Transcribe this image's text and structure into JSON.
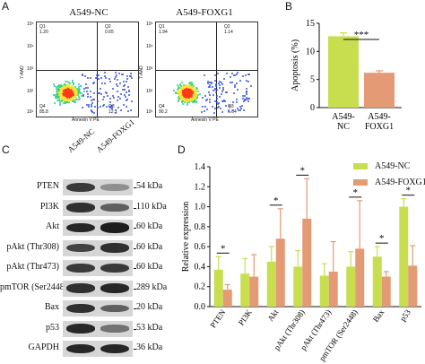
{
  "panels": {
    "a": "A",
    "b": "B",
    "c": "C",
    "d": "D"
  },
  "flow": [
    {
      "title": "A549-NC",
      "q1": [
        "Q1",
        "1.20"
      ],
      "q2": [
        "Q2",
        "0.65"
      ],
      "q3": [
        "Q3",
        "12.1"
      ],
      "q4": [
        "Q4",
        "85.8"
      ],
      "xlabel": "Annexin V  PE",
      "ylabel": "7-AAD",
      "ticks": [
        "10⁵",
        "10⁴",
        "10³",
        "10²",
        "10¹"
      ]
    },
    {
      "title": "A549-FOXG1",
      "q1": [
        "Q1",
        "1.94"
      ],
      "q2": [
        "Q2",
        "1.14"
      ],
      "q3": [
        "Q3",
        "6.64"
      ],
      "q4": [
        "Q4",
        "90.2"
      ],
      "xlabel": "Annexin V  PE",
      "ylabel": "7-AAD",
      "ticks": [
        "10⁵",
        "10⁴",
        "10³",
        "10²",
        "10¹"
      ]
    }
  ],
  "wb": {
    "headers": [
      "A549-NC",
      "A549-FOXG1"
    ],
    "rows": [
      {
        "label": "PTEN",
        "kda": "54 kDa",
        "nc": 0.75,
        "fox": 0.3
      },
      {
        "label": "PI3K",
        "kda": "110 kDa",
        "nc": 0.8,
        "fox": 0.55
      },
      {
        "label": "Akt",
        "kda": "60 kDa",
        "nc": 0.85,
        "fox": 0.9
      },
      {
        "label": "pAkt (Thr308)",
        "kda": "60 kDa",
        "nc": 0.7,
        "fox": 0.8
      },
      {
        "label": "pAkt (Thr473)",
        "kda": "60 kDa",
        "nc": 0.75,
        "fox": 0.75
      },
      {
        "label": "pmTOR (Ser2448)",
        "kda": "289 kDa",
        "nc": 0.8,
        "fox": 0.85
      },
      {
        "label": "Bax",
        "kda": "20 kDa",
        "nc": 0.8,
        "fox": 0.55
      },
      {
        "label": "p53",
        "kda": "53 kDa",
        "nc": 0.85,
        "fox": 0.45
      },
      {
        "label": "GAPDH",
        "kda": "36 kDa",
        "nc": 0.85,
        "fox": 0.85
      }
    ]
  },
  "colors": {
    "nc": "#c8de4f",
    "fox": "#e49a74",
    "sig_line": "#111111"
  },
  "chart_data": [
    {
      "type": "bar",
      "categories": [
        "A549-NC",
        "A549-FOXG1"
      ],
      "values": [
        12.7,
        6.2
      ],
      "errors": [
        0.6,
        0.35
      ],
      "ylabel": "Apoptosis (%)",
      "ylim": [
        0,
        15
      ],
      "yticks": [
        "0",
        "5",
        "10",
        "15"
      ],
      "significance": "***",
      "colors": [
        "#c8de4f",
        "#e49a74"
      ],
      "grid": false
    },
    {
      "type": "bar",
      "categories": [
        "PTEN",
        "PI3K",
        "Akt",
        "pAkt (Thr308)",
        "pAkt (Thr473)",
        "pmTOR (Ser2448)",
        "Bax",
        "p53"
      ],
      "series": [
        {
          "name": "A549-NC",
          "values": [
            0.37,
            0.33,
            0.45,
            0.4,
            0.31,
            0.4,
            0.5,
            1.0
          ],
          "errors": [
            0.13,
            0.15,
            0.15,
            0.16,
            0.12,
            0.15,
            0.1,
            0.08
          ]
        },
        {
          "name": "A549-FOXG1",
          "values": [
            0.17,
            0.3,
            0.68,
            0.88,
            0.35,
            0.58,
            0.3,
            0.41
          ],
          "errors": [
            0.05,
            0.22,
            0.3,
            0.4,
            0.3,
            0.48,
            0.05,
            0.2
          ]
        }
      ],
      "significance": [
        "*",
        "",
        "*",
        "*",
        "",
        "*",
        "*",
        "*"
      ],
      "ylabel": "Relative expression",
      "ylim": [
        0,
        1.4
      ],
      "yticks": [
        "0.0",
        "0.2",
        "0.4",
        "0.6",
        "0.8",
        "1.0",
        "1.2",
        "1.4"
      ],
      "legend": "top-right",
      "grid": false
    }
  ]
}
